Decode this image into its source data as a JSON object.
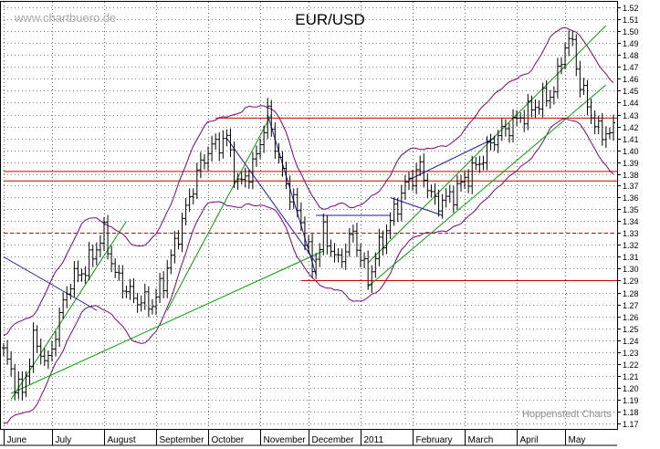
{
  "header": {
    "watermark": "www.chartbuero.de",
    "title": "EUR/USD",
    "credit": "Hoppenstedt Charts"
  },
  "colors": {
    "price": "#000000",
    "bollinger": "#7f007f",
    "trend_green": "#00a000",
    "trend_blue": "#1a1aaa",
    "support_red": "#cc0000",
    "grid": "#000000"
  },
  "chart_data": {
    "type": "line",
    "title": "EUR/USD",
    "ylim": [
      1.165,
      1.525
    ],
    "yticks": [
      1.17,
      1.18,
      1.19,
      1.2,
      1.21,
      1.22,
      1.23,
      1.24,
      1.25,
      1.26,
      1.27,
      1.28,
      1.29,
      1.3,
      1.31,
      1.32,
      1.33,
      1.34,
      1.35,
      1.36,
      1.37,
      1.38,
      1.39,
      1.4,
      1.41,
      1.42,
      1.43,
      1.44,
      1.45,
      1.46,
      1.47,
      1.48,
      1.49,
      1.5,
      1.51,
      1.52
    ],
    "x_labels": [
      "June",
      "July",
      "August",
      "September",
      "October",
      "November",
      "December",
      "2011",
      "February",
      "March",
      "April",
      "May"
    ],
    "x_label_index": [
      0,
      13,
      27,
      41,
      55,
      69,
      82,
      96,
      110,
      124,
      138,
      151
    ],
    "n_bars": 165,
    "price_anchors": [
      [
        0,
        1.23
      ],
      [
        3,
        1.205
      ],
      [
        5,
        1.195
      ],
      [
        8,
        1.24
      ],
      [
        12,
        1.22
      ],
      [
        15,
        1.26
      ],
      [
        18,
        1.29
      ],
      [
        22,
        1.3
      ],
      [
        27,
        1.33
      ],
      [
        30,
        1.295
      ],
      [
        35,
        1.275
      ],
      [
        40,
        1.27
      ],
      [
        43,
        1.29
      ],
      [
        47,
        1.33
      ],
      [
        52,
        1.38
      ],
      [
        55,
        1.4
      ],
      [
        60,
        1.41
      ],
      [
        63,
        1.37
      ],
      [
        67,
        1.385
      ],
      [
        71,
        1.43
      ],
      [
        75,
        1.38
      ],
      [
        80,
        1.34
      ],
      [
        83,
        1.3
      ],
      [
        86,
        1.33
      ],
      [
        90,
        1.305
      ],
      [
        94,
        1.33
      ],
      [
        98,
        1.29
      ],
      [
        100,
        1.31
      ],
      [
        104,
        1.34
      ],
      [
        108,
        1.37
      ],
      [
        112,
        1.385
      ],
      [
        116,
        1.355
      ],
      [
        120,
        1.36
      ],
      [
        124,
        1.375
      ],
      [
        128,
        1.39
      ],
      [
        132,
        1.41
      ],
      [
        136,
        1.42
      ],
      [
        140,
        1.43
      ],
      [
        144,
        1.44
      ],
      [
        148,
        1.45
      ],
      [
        151,
        1.49
      ],
      [
        153,
        1.49
      ],
      [
        155,
        1.455
      ],
      [
        158,
        1.43
      ],
      [
        160,
        1.415
      ]
    ],
    "horizontal_lines": [
      {
        "value": 1.427,
        "from_index": 57,
        "style": "solid"
      },
      {
        "value": 1.382,
        "from_index": 0,
        "style": "solid"
      },
      {
        "value": 1.374,
        "from_index": 0,
        "style": "solid"
      },
      {
        "value": 1.33,
        "from_index": 0,
        "style": "dashed"
      },
      {
        "value": 1.29,
        "from_index": 80,
        "style": "solid"
      }
    ],
    "trend_lines": [
      {
        "color": "green",
        "from": [
          2,
          1.19
        ],
        "to": [
          33,
          1.34
        ]
      },
      {
        "color": "green",
        "from": [
          2,
          1.195
        ],
        "to": [
          86,
          1.315
        ]
      },
      {
        "color": "green",
        "from": [
          44,
          1.265
        ],
        "to": [
          72,
          1.43
        ]
      },
      {
        "color": "green",
        "from": [
          98,
          1.285
        ],
        "to": [
          162,
          1.455
        ]
      },
      {
        "color": "green",
        "from": [
          98,
          1.305
        ],
        "to": [
          162,
          1.505
        ]
      },
      {
        "color": "blue",
        "from": [
          0,
          1.31
        ],
        "to": [
          25,
          1.265
        ]
      },
      {
        "color": "blue",
        "from": [
          60,
          1.41
        ],
        "to": [
          84,
          1.305
        ]
      },
      {
        "color": "blue",
        "from": [
          71,
          1.43
        ],
        "to": [
          84,
          1.295
        ]
      },
      {
        "color": "blue",
        "from": [
          84,
          1.345
        ],
        "to": [
          104,
          1.345
        ]
      },
      {
        "color": "blue",
        "from": [
          109,
          1.375
        ],
        "to": [
          132,
          1.41
        ]
      },
      {
        "color": "blue",
        "from": [
          104,
          1.36
        ],
        "to": [
          118,
          1.345
        ]
      }
    ],
    "bollinger_width": 0.032,
    "grid": true,
    "y_axis_position": "right"
  }
}
